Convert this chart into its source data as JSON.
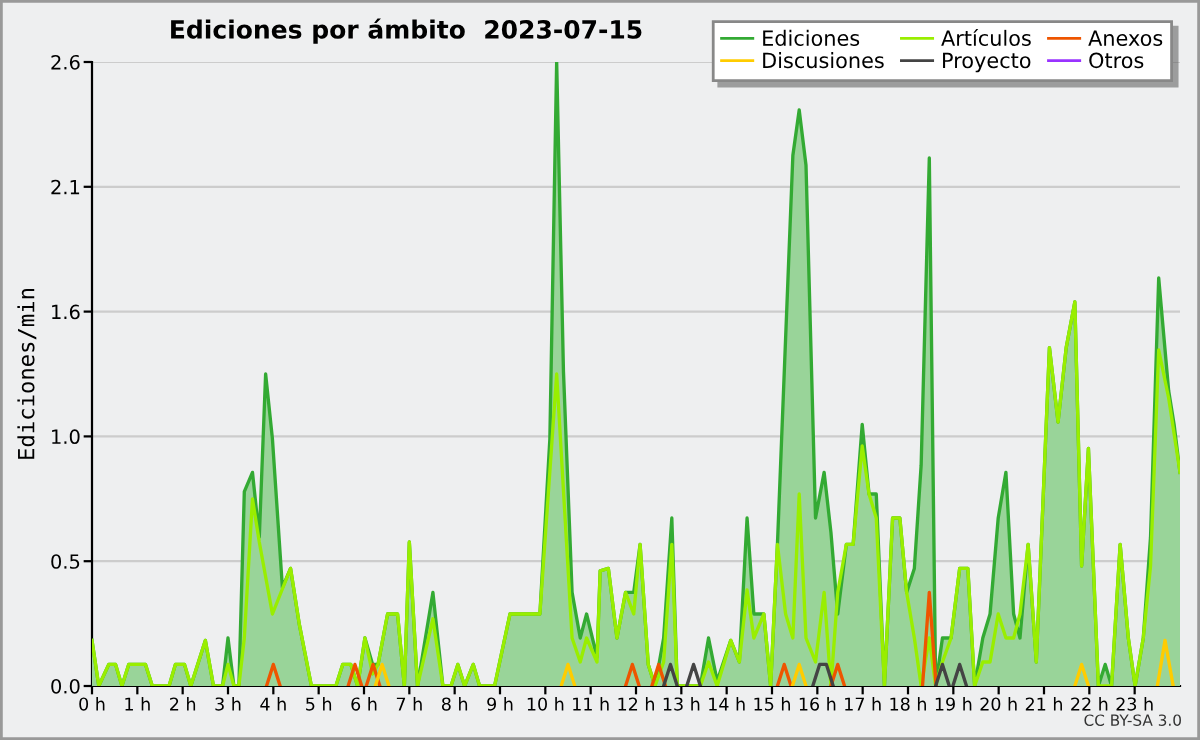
{
  "chart_data": {
    "type": "area",
    "title": "Ediciones por ámbito  2023-07-15",
    "ylabel": "Ediciones/min",
    "xlim": [
      0,
      24
    ],
    "ylim": [
      0,
      2.6
    ],
    "xticks": [
      {
        "value": 0,
        "label": "0 h"
      },
      {
        "value": 1,
        "label": "1 h"
      },
      {
        "value": 2,
        "label": "2 h"
      },
      {
        "value": 3,
        "label": "3 h"
      },
      {
        "value": 4,
        "label": "4 h"
      },
      {
        "value": 5,
        "label": "5 h"
      },
      {
        "value": 6,
        "label": "6 h"
      },
      {
        "value": 7,
        "label": "7 h"
      },
      {
        "value": 8,
        "label": "8 h"
      },
      {
        "value": 9,
        "label": "9 h"
      },
      {
        "value": 10,
        "label": "10 h"
      },
      {
        "value": 11,
        "label": "11 h"
      },
      {
        "value": 12,
        "label": "12 h"
      },
      {
        "value": 13,
        "label": "13 h"
      },
      {
        "value": 14,
        "label": "14 h"
      },
      {
        "value": 15,
        "label": "15 h"
      },
      {
        "value": 16,
        "label": "16 h"
      },
      {
        "value": 17,
        "label": "17 h"
      },
      {
        "value": 18,
        "label": "18 h"
      },
      {
        "value": 19,
        "label": "19 h"
      },
      {
        "value": 20,
        "label": "20 h"
      },
      {
        "value": 21,
        "label": "21 h"
      },
      {
        "value": 22,
        "label": "22 h"
      },
      {
        "value": 23,
        "label": "23 h"
      }
    ],
    "yticks": [
      {
        "value": 0,
        "label": "0.0"
      },
      {
        "value": 0.52,
        "label": "0.5"
      },
      {
        "value": 1.04,
        "label": "1.0"
      },
      {
        "value": 1.56,
        "label": "1.6"
      },
      {
        "value": 2.08,
        "label": "2.1"
      },
      2.6
    ],
    "grid": "y",
    "legend": "top right",
    "annotations": [
      "CC BY-SA 3.0"
    ],
    "series": [
      {
        "name": "Otros",
        "type": "line",
        "color": "#9933ff"
      },
      {
        "name": "Ediciones",
        "color": "#33aa33",
        "x": [
          0,
          0.15,
          0.37,
          0.52,
          0.66,
          0.81,
          1.18,
          1.33,
          1.7,
          1.84,
          2.04,
          2.18,
          2.5,
          2.68,
          2.88,
          3.0,
          3.13,
          3.24,
          3.36,
          3.54,
          3.69,
          3.83,
          3.98,
          4.2,
          4.38,
          4.57,
          4.84,
          5.38,
          5.53,
          5.71,
          5.86,
          6.02,
          6.19,
          6.31,
          6.52,
          6.74,
          6.89,
          7.0,
          7.18,
          7.52,
          7.74,
          7.92,
          8.07,
          8.22,
          8.41,
          8.55,
          8.88,
          9.22,
          9.88,
          10.1,
          10.25,
          10.4,
          10.59,
          10.77,
          10.91,
          11.14,
          11.21,
          11.39,
          11.58,
          11.77,
          11.95,
          12.09,
          12.27,
          12.42,
          12.61,
          12.79,
          12.91,
          13.42,
          13.6,
          13.79,
          14.09,
          14.28,
          14.45,
          14.6,
          14.82,
          14.97,
          15.12,
          15.46,
          15.6,
          15.75,
          15.96,
          16.15,
          16.3,
          16.45,
          16.64,
          16.79,
          16.99,
          17.14,
          17.3,
          17.48,
          17.66,
          17.82,
          17.97,
          18.14,
          18.29,
          18.47,
          18.61,
          18.76,
          18.95,
          19.14,
          19.32,
          19.47,
          19.65,
          19.81,
          19.99,
          20.16,
          20.33,
          20.47,
          20.65,
          20.83,
          21.12,
          21.31,
          21.49,
          21.68,
          21.83,
          21.98,
          22.2,
          22.35,
          22.49,
          22.68,
          22.86,
          23.01,
          23.19,
          23.35,
          23.53,
          23.75,
          23.87,
          24.0
        ],
        "values": [
          0.19,
          0,
          0.09,
          0.09,
          0,
          0.09,
          0.09,
          0,
          0,
          0.09,
          0.09,
          0,
          0.19,
          0,
          0,
          0.2,
          0,
          0,
          0.81,
          0.89,
          0.62,
          1.3,
          1.03,
          0.41,
          0.49,
          0.26,
          0,
          0,
          0.09,
          0.09,
          0,
          0.2,
          0.09,
          0.09,
          0.3,
          0.3,
          0,
          0.6,
          0,
          0.39,
          0,
          0,
          0.09,
          0,
          0.09,
          0,
          0,
          0.3,
          0.3,
          1.03,
          2.6,
          1.31,
          0.39,
          0.2,
          0.3,
          0.12,
          0.48,
          0.49,
          0.2,
          0.39,
          0.39,
          0.59,
          0.09,
          0,
          0.2,
          0.7,
          0,
          0,
          0.2,
          0.02,
          0.19,
          0.1,
          0.7,
          0.3,
          0.3,
          0,
          0.59,
          2.21,
          2.4,
          2.17,
          0.7,
          0.89,
          0.64,
          0.3,
          0.59,
          0.59,
          1.09,
          0.8,
          0.8,
          0,
          0.7,
          0.7,
          0.39,
          0.49,
          0.92,
          2.2,
          0,
          0.2,
          0.2,
          0.49,
          0.49,
          0,
          0.2,
          0.3,
          0.7,
          0.89,
          0.3,
          0.2,
          0.59,
          0.1,
          1.41,
          1.1,
          1.41,
          1.6,
          0.5,
          0.99,
          0,
          0.09,
          0,
          0.59,
          0.2,
          0,
          0.2,
          0.62,
          1.7,
          1.23,
          1.09,
          0.89
        ]
      },
      {
        "name": "Artículos",
        "type": "line",
        "color": "#99ee00",
        "x": [
          0,
          0.15,
          0.37,
          0.52,
          0.66,
          0.81,
          1.18,
          1.33,
          1.7,
          1.84,
          2.04,
          2.18,
          2.5,
          2.68,
          2.88,
          3.0,
          3.13,
          3.24,
          3.36,
          3.54,
          3.69,
          3.98,
          4.38,
          4.57,
          4.84,
          5.38,
          5.53,
          5.71,
          5.86,
          6.02,
          6.19,
          6.31,
          6.52,
          6.74,
          6.89,
          7.0,
          7.18,
          7.52,
          7.74,
          7.92,
          8.07,
          8.22,
          8.41,
          8.55,
          8.88,
          9.22,
          9.88,
          10.25,
          10.59,
          10.77,
          10.91,
          11.14,
          11.21,
          11.39,
          11.58,
          11.77,
          11.95,
          12.09,
          12.27,
          12.42,
          12.61,
          12.79,
          12.91,
          13.42,
          13.6,
          13.79,
          14.09,
          14.28,
          14.45,
          14.6,
          14.82,
          14.97,
          15.12,
          15.3,
          15.46,
          15.6,
          15.75,
          15.96,
          16.15,
          16.3,
          16.45,
          16.64,
          16.79,
          16.99,
          17.14,
          17.3,
          17.48,
          17.66,
          17.82,
          17.97,
          18.14,
          18.29,
          18.47,
          18.61,
          18.76,
          18.95,
          19.14,
          19.32,
          19.47,
          19.65,
          19.81,
          19.99,
          20.16,
          20.33,
          20.47,
          20.65,
          20.83,
          21.12,
          21.31,
          21.49,
          21.68,
          21.83,
          21.98,
          22.2,
          22.35,
          22.49,
          22.68,
          22.86,
          23.01,
          23.19,
          23.35,
          23.53,
          23.75,
          24.0
        ],
        "values": [
          0.19,
          0,
          0.09,
          0.09,
          0,
          0.09,
          0.09,
          0,
          0,
          0.09,
          0.09,
          0,
          0.19,
          0,
          0,
          0.09,
          0,
          0,
          0.2,
          0.78,
          0.6,
          0.3,
          0.49,
          0.26,
          0,
          0,
          0.09,
          0.09,
          0,
          0.2,
          0.05,
          0.09,
          0.3,
          0.3,
          0,
          0.6,
          0,
          0.28,
          0,
          0,
          0.09,
          0,
          0.09,
          0,
          0,
          0.3,
          0.3,
          1.3,
          0.2,
          0.1,
          0.2,
          0.1,
          0.48,
          0.49,
          0.2,
          0.39,
          0.3,
          0.59,
          0.09,
          0,
          0.1,
          0.59,
          0,
          0,
          0.1,
          0,
          0.19,
          0.1,
          0.4,
          0.2,
          0.3,
          0,
          0.59,
          0.3,
          0.2,
          0.8,
          0.2,
          0.1,
          0.39,
          0,
          0.39,
          0.59,
          0.59,
          1.0,
          0.8,
          0.7,
          0,
          0.7,
          0.7,
          0.39,
          0.2,
          0,
          0.2,
          0,
          0.1,
          0.2,
          0.49,
          0.49,
          0,
          0.1,
          0.1,
          0.3,
          0.2,
          0.2,
          0.3,
          0.59,
          0.1,
          1.41,
          1.1,
          1.41,
          1.6,
          0.5,
          0.99,
          0,
          0,
          0,
          0.59,
          0.2,
          0,
          0.2,
          0.5,
          1.4,
          1.2,
          0.89
        ]
      },
      {
        "name": "Anexos",
        "type": "line",
        "color": "#ee5500",
        "x": [
          3.85,
          4.0,
          4.15,
          null,
          5.65,
          5.8,
          5.95,
          null,
          6.05,
          6.2,
          6.35,
          null,
          11.77,
          11.92,
          12.07,
          null,
          12.35,
          12.5,
          12.65,
          null,
          15.12,
          15.27,
          15.42,
          null,
          16.3,
          16.45,
          16.6,
          null,
          18.32,
          18.47,
          18.62
        ],
        "values": [
          0,
          0.09,
          0,
          null,
          0,
          0.09,
          0,
          null,
          0,
          0.09,
          0,
          null,
          0,
          0.09,
          0,
          null,
          0,
          0.09,
          0,
          null,
          0,
          0.09,
          0,
          null,
          0,
          0.09,
          0,
          null,
          0,
          0.39,
          0
        ]
      },
      {
        "name": "Discusiones",
        "type": "line",
        "color": "#ffcc00",
        "x": [
          6.25,
          6.4,
          6.55,
          null,
          10.35,
          10.5,
          10.65,
          null,
          15.45,
          15.6,
          15.75,
          null,
          21.68,
          21.83,
          21.98,
          null,
          23.5,
          23.67,
          23.85
        ],
        "values": [
          0,
          0.09,
          0,
          null,
          0,
          0.09,
          0,
          null,
          0,
          0.09,
          0,
          null,
          0,
          0.09,
          0,
          null,
          0,
          0.19,
          0
        ]
      },
      {
        "name": "Proyecto",
        "type": "line",
        "color": "#444444",
        "x": [
          12.61,
          12.76,
          12.91,
          null,
          13.12,
          13.27,
          13.42,
          null,
          15.9,
          16.05,
          16.2,
          16.35,
          null,
          18.61,
          18.76,
          18.91,
          null,
          18.99,
          19.14,
          19.29
        ],
        "values": [
          0,
          0.09,
          0,
          null,
          0,
          0.09,
          0,
          null,
          0,
          0.09,
          0.09,
          0,
          null,
          0,
          0.09,
          0,
          null,
          0,
          0.09,
          0
        ]
      }
    ]
  }
}
